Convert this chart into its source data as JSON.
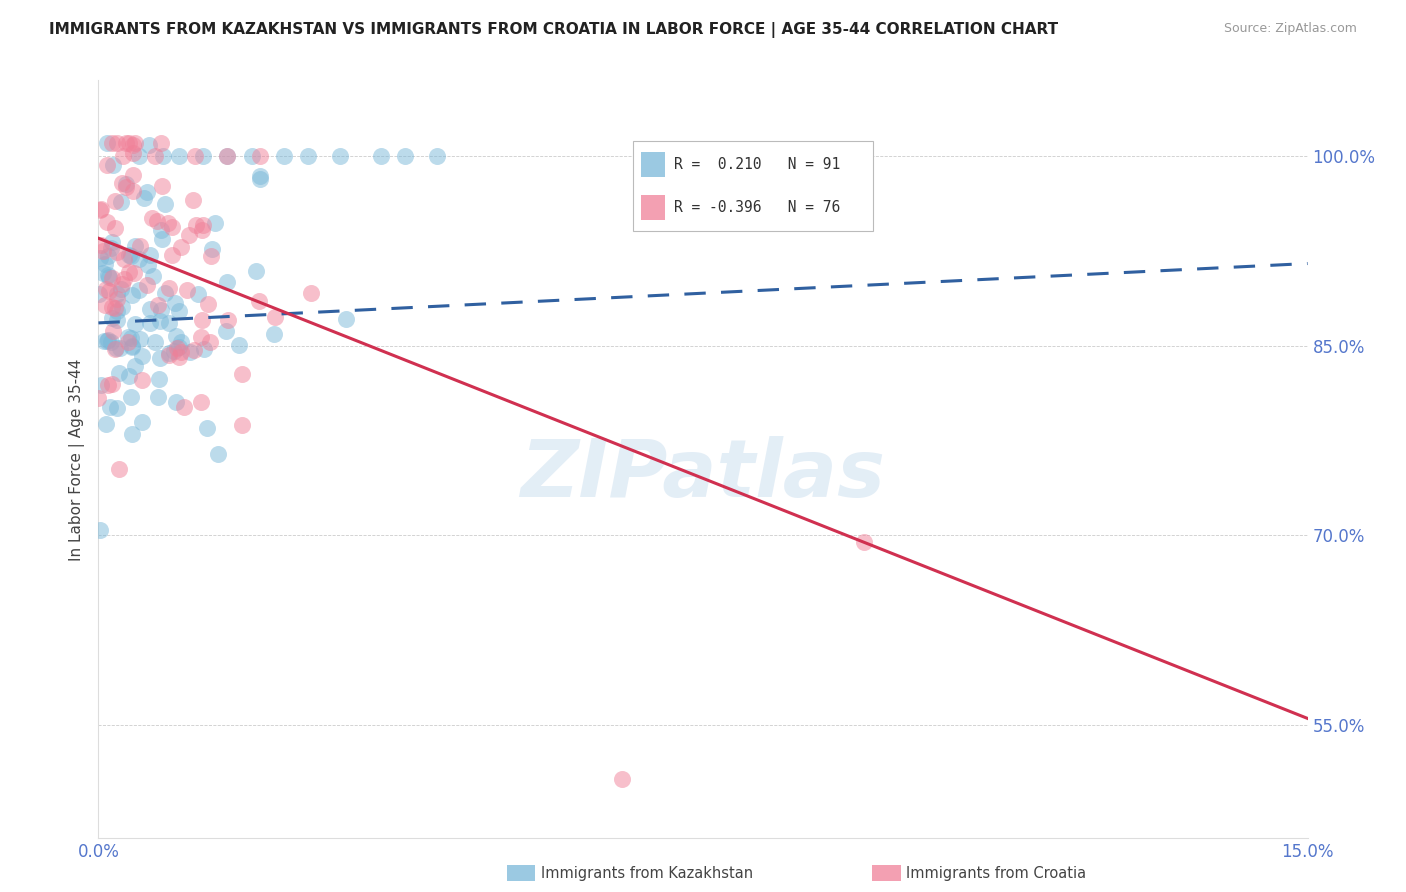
{
  "title": "IMMIGRANTS FROM KAZAKHSTAN VS IMMIGRANTS FROM CROATIA IN LABOR FORCE | AGE 35-44 CORRELATION CHART",
  "source": "Source: ZipAtlas.com",
  "ylabel": "In Labor Force | Age 35-44",
  "y_ticks": [
    0.55,
    0.7,
    0.85,
    1.0
  ],
  "y_tick_labels": [
    "55.0%",
    "70.0%",
    "85.0%",
    "100.0%"
  ],
  "x_range": [
    0.0,
    0.15
  ],
  "y_range": [
    0.46,
    1.06
  ],
  "r_kazakhstan": 0.21,
  "n_kazakhstan": 91,
  "r_croatia": -0.396,
  "n_croatia": 76,
  "color_kazakhstan": "#7ab8d9",
  "color_croatia": "#f08098",
  "color_line_kazakhstan": "#3060a0",
  "color_line_croatia": "#d03050",
  "watermark": "ZIPatlas",
  "legend_label_kazakhstan": "Immigrants from Kazakhstan",
  "legend_label_croatia": "Immigrants from Croatia",
  "seed": 12345,
  "line_kaz_x0": 0.0,
  "line_kaz_y0": 0.868,
  "line_kaz_x1": 0.15,
  "line_kaz_y1": 0.915,
  "line_cro_x0": 0.0,
  "line_cro_y0": 0.935,
  "line_cro_x1": 0.15,
  "line_cro_y1": 0.555
}
